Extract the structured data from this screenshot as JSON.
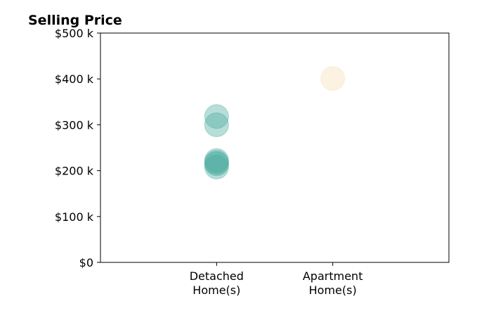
{
  "chart_data": {
    "type": "scatter",
    "title": "Selling Price",
    "xlabel": "",
    "ylabel": "",
    "categories": [
      [
        "Detached",
        "Home(s)"
      ],
      [
        "Apartment",
        "Home(s)"
      ]
    ],
    "xlim": [
      0,
      3
    ],
    "ylim": [
      0,
      500000
    ],
    "y_ticks": [
      {
        "value": 0,
        "label": "$0"
      },
      {
        "value": 100000,
        "label": "$100 k"
      },
      {
        "value": 200000,
        "label": "$200 k"
      },
      {
        "value": 300000,
        "label": "$300 k"
      },
      {
        "value": 400000,
        "label": "$400 k"
      },
      {
        "value": 500000,
        "label": "$500 k"
      }
    ],
    "grid": false,
    "series": [
      {
        "category": 0,
        "color": "#45a99b",
        "values": [
          318000,
          300000,
          222000,
          218000,
          215000,
          208000
        ]
      },
      {
        "category": 1,
        "color": "#f5deb3",
        "values": [
          401000
        ]
      }
    ]
  }
}
